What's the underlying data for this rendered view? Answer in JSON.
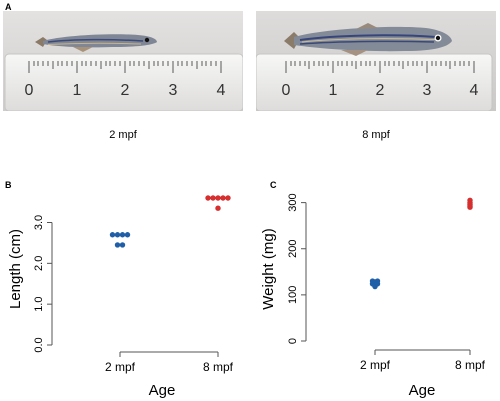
{
  "panels": {
    "a": {
      "letter": "A",
      "photos": [
        {
          "caption": "2 mpf",
          "ruler_numbers": [
            "0",
            "1",
            "2",
            "3",
            "4"
          ]
        },
        {
          "caption": "8 mpf",
          "ruler_numbers": [
            "0",
            "1",
            "2",
            "3",
            "4"
          ]
        }
      ]
    },
    "b": {
      "letter": "B"
    },
    "c": {
      "letter": "C"
    }
  },
  "chart_data": [
    {
      "type": "scatter",
      "panel": "B",
      "title": "",
      "xlabel": "Age",
      "ylabel": "Length (cm)",
      "categories": [
        "2 mpf",
        "8 mpf"
      ],
      "ylim": [
        0,
        3.6
      ],
      "yticks": [
        "0.0",
        "1.0",
        "2.0",
        "3.0"
      ],
      "series": [
        {
          "category": "2 mpf",
          "color": "#1f5fa8",
          "points": [
            2.7,
            2.7,
            2.7,
            2.7,
            2.45,
            2.45
          ]
        },
        {
          "category": "8 mpf",
          "color": "#d62f2f",
          "points": [
            3.6,
            3.6,
            3.6,
            3.6,
            3.6,
            3.35
          ]
        }
      ],
      "grid": false
    },
    {
      "type": "scatter",
      "panel": "C",
      "title": "",
      "xlabel": "Age",
      "ylabel": "Weight (mg)",
      "categories": [
        "2 mpf",
        "8 mpf"
      ],
      "ylim": [
        0,
        310
      ],
      "yticks": [
        "0",
        "100",
        "200",
        "300"
      ],
      "series": [
        {
          "category": "2 mpf",
          "color": "#1f5fa8",
          "points": [
            130,
            128,
            124,
            118,
            124,
            130
          ]
        },
        {
          "category": "8 mpf",
          "color": "#d62f2f",
          "points": [
            305,
            300,
            295,
            290,
            292,
            297
          ]
        }
      ],
      "grid": false
    }
  ]
}
